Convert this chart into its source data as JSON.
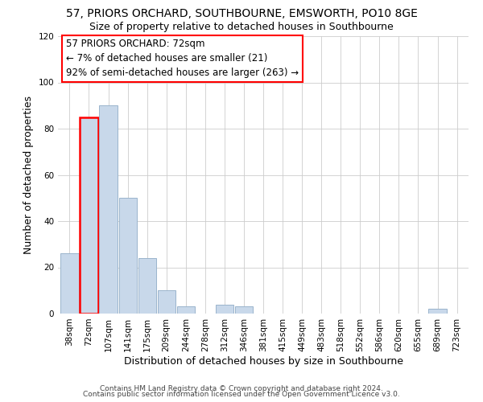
{
  "title": "57, PRIORS ORCHARD, SOUTHBOURNE, EMSWORTH, PO10 8GE",
  "subtitle": "Size of property relative to detached houses in Southbourne",
  "xlabel": "Distribution of detached houses by size in Southbourne",
  "ylabel": "Number of detached properties",
  "bar_color": "#c8d8ea",
  "bar_edge_color": "#9ab4cc",
  "bin_labels": [
    "38sqm",
    "72sqm",
    "107sqm",
    "141sqm",
    "175sqm",
    "209sqm",
    "244sqm",
    "278sqm",
    "312sqm",
    "346sqm",
    "381sqm",
    "415sqm",
    "449sqm",
    "483sqm",
    "518sqm",
    "552sqm",
    "586sqm",
    "620sqm",
    "655sqm",
    "689sqm",
    "723sqm"
  ],
  "bar_heights": [
    26,
    85,
    90,
    50,
    24,
    10,
    3,
    0,
    4,
    3,
    0,
    0,
    0,
    0,
    0,
    0,
    0,
    0,
    0,
    2,
    0
  ],
  "ylim": [
    0,
    120
  ],
  "yticks": [
    0,
    20,
    40,
    60,
    80,
    100,
    120
  ],
  "annotation_line1": "57 PRIORS ORCHARD: 72sqm",
  "annotation_line2": "← 7% of detached houses are smaller (21)",
  "annotation_line3": "92% of semi-detached houses are larger (263) →",
  "highlight_bar_index": 1,
  "footer_line1": "Contains HM Land Registry data © Crown copyright and database right 2024.",
  "footer_line2": "Contains public sector information licensed under the Open Government Licence v3.0.",
  "title_fontsize": 10,
  "subtitle_fontsize": 9,
  "axis_label_fontsize": 9,
  "tick_fontsize": 7.5,
  "annotation_fontsize": 8.5,
  "footer_fontsize": 6.5
}
